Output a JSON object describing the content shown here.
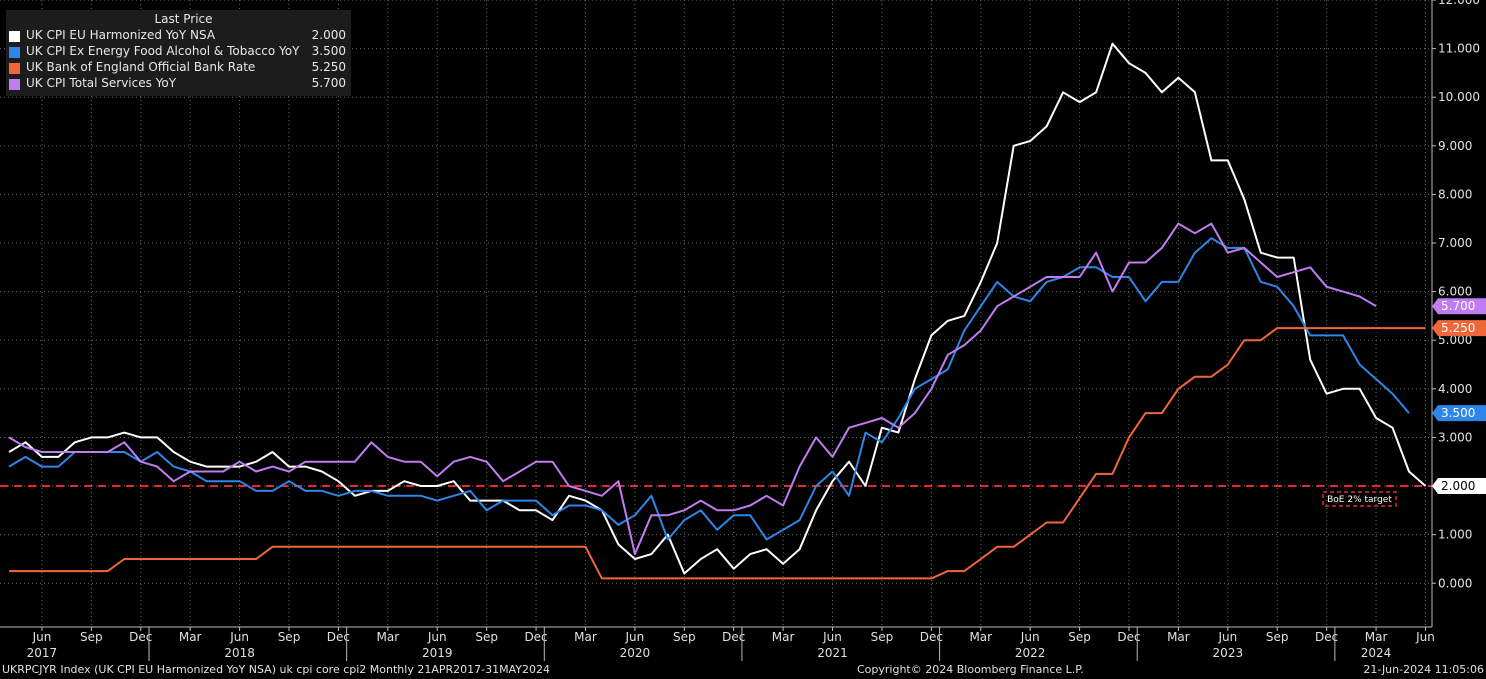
{
  "legend": {
    "title": "Last Price",
    "entries": [
      {
        "name": "UK CPI EU Harmonized YoY NSA",
        "value": "2.000",
        "color": "#ffffff"
      },
      {
        "name": "UK CPI Ex Energy Food Alcohol & Tobacco YoY",
        "value": "3.500",
        "color": "#2e86e8"
      },
      {
        "name": "UK Bank of England Official Bank Rate",
        "value": "5.250",
        "color": "#f2673a"
      },
      {
        "name": "UK CPI Total Services YoY",
        "value": "5.700",
        "color": "#c07df2"
      }
    ]
  },
  "footer": {
    "left": "UKRPCJYR Index (UK CPI EU Harmonized YoY NSA) uk cpi core cpi2  Monthly 21APR2017-31MAY2024",
    "center": "Copyright© 2024 Bloomberg Finance L.P.",
    "right": "21-Jun-2024 11:05:06"
  },
  "chart_data": {
    "type": "line",
    "x_start": "2017-04",
    "x_end": "2024-05",
    "ylim": [
      -0.9,
      12.0
    ],
    "y_ticks": [
      "0.000",
      "1.000",
      "2.000",
      "3.000",
      "4.000",
      "5.000",
      "6.000",
      "7.000",
      "8.000",
      "9.000",
      "10.000",
      "11.000",
      "12.000"
    ],
    "x_month_labels": [
      {
        "date": "2017-06",
        "label": "Jun"
      },
      {
        "date": "2017-09",
        "label": "Sep"
      },
      {
        "date": "2017-12",
        "label": "Dec"
      },
      {
        "date": "2018-03",
        "label": "Mar"
      },
      {
        "date": "2018-06",
        "label": "Jun"
      },
      {
        "date": "2018-09",
        "label": "Sep"
      },
      {
        "date": "2018-12",
        "label": "Dec"
      },
      {
        "date": "2019-03",
        "label": "Mar"
      },
      {
        "date": "2019-06",
        "label": "Jun"
      },
      {
        "date": "2019-09",
        "label": "Sep"
      },
      {
        "date": "2019-12",
        "label": "Dec"
      },
      {
        "date": "2020-03",
        "label": "Mar"
      },
      {
        "date": "2020-06",
        "label": "Jun"
      },
      {
        "date": "2020-09",
        "label": "Sep"
      },
      {
        "date": "2020-12",
        "label": "Dec"
      },
      {
        "date": "2021-03",
        "label": "Mar"
      },
      {
        "date": "2021-06",
        "label": "Jun"
      },
      {
        "date": "2021-09",
        "label": "Sep"
      },
      {
        "date": "2021-12",
        "label": "Dec"
      },
      {
        "date": "2022-03",
        "label": "Mar"
      },
      {
        "date": "2022-06",
        "label": "Jun"
      },
      {
        "date": "2022-09",
        "label": "Sep"
      },
      {
        "date": "2022-12",
        "label": "Dec"
      },
      {
        "date": "2023-03",
        "label": "Mar"
      },
      {
        "date": "2023-06",
        "label": "Jun"
      },
      {
        "date": "2023-09",
        "label": "Sep"
      },
      {
        "date": "2023-12",
        "label": "Dec"
      },
      {
        "date": "2024-03",
        "label": "Mar"
      },
      {
        "date": "2024-06",
        "label": "Jun"
      }
    ],
    "x_year_labels": [
      {
        "date": "2017-06",
        "label": "2017"
      },
      {
        "date": "2018-06",
        "label": "2018"
      },
      {
        "date": "2019-06",
        "label": "2019"
      },
      {
        "date": "2020-06",
        "label": "2020"
      },
      {
        "date": "2021-06",
        "label": "2021"
      },
      {
        "date": "2022-06",
        "label": "2022"
      },
      {
        "date": "2023-06",
        "label": "2023"
      },
      {
        "date": "2024-03",
        "label": "2024"
      }
    ],
    "reference_line": {
      "value": 2.0,
      "label": "BoE 2% target",
      "color": "#e8282d"
    },
    "series": [
      {
        "name": "UK CPI EU Harmonized YoY NSA",
        "color": "#ffffff",
        "last_label": "2.000",
        "values": [
          2.7,
          2.9,
          2.6,
          2.6,
          2.9,
          3.0,
          3.0,
          3.1,
          3.0,
          3.0,
          2.7,
          2.5,
          2.4,
          2.4,
          2.4,
          2.5,
          2.7,
          2.4,
          2.4,
          2.3,
          2.1,
          1.8,
          1.9,
          1.9,
          2.1,
          2.0,
          2.0,
          2.1,
          1.7,
          1.7,
          1.7,
          1.5,
          1.5,
          1.3,
          1.8,
          1.7,
          1.5,
          0.8,
          0.5,
          0.6,
          1.0,
          0.2,
          0.5,
          0.7,
          0.3,
          0.6,
          0.7,
          0.4,
          0.7,
          1.5,
          2.1,
          2.5,
          2.0,
          3.2,
          3.1,
          4.2,
          5.1,
          5.4,
          5.5,
          6.2,
          7.0,
          9.0,
          9.1,
          9.4,
          10.1,
          9.9,
          10.1,
          11.1,
          10.7,
          10.5,
          10.1,
          10.4,
          10.1,
          8.7,
          8.7,
          7.9,
          6.8,
          6.7,
          6.7,
          4.6,
          3.9,
          4.0,
          4.0,
          3.4,
          3.2,
          2.3,
          2.0
        ]
      },
      {
        "name": "UK CPI Ex Energy Food Alcohol & Tobacco YoY",
        "color": "#2e86e8",
        "last_label": "3.500",
        "values": [
          2.4,
          2.6,
          2.4,
          2.4,
          2.7,
          2.7,
          2.7,
          2.7,
          2.5,
          2.7,
          2.4,
          2.3,
          2.1,
          2.1,
          2.1,
          1.9,
          1.9,
          2.1,
          1.9,
          1.9,
          1.8,
          1.9,
          1.9,
          1.8,
          1.8,
          1.8,
          1.7,
          1.8,
          1.9,
          1.5,
          1.7,
          1.7,
          1.7,
          1.4,
          1.6,
          1.6,
          1.5,
          1.2,
          1.4,
          1.8,
          0.9,
          1.3,
          1.5,
          1.1,
          1.4,
          1.4,
          0.9,
          1.1,
          1.3,
          2.0,
          2.3,
          1.8,
          3.1,
          2.9,
          3.4,
          4.0,
          4.2,
          4.4,
          5.2,
          5.7,
          6.2,
          5.9,
          5.8,
          6.2,
          6.3,
          6.5,
          6.5,
          6.3,
          6.3,
          5.8,
          6.2,
          6.2,
          6.8,
          7.1,
          6.9,
          6.9,
          6.2,
          6.1,
          5.7,
          5.1,
          5.1,
          5.1,
          4.5,
          4.2,
          3.9,
          3.5
        ]
      },
      {
        "name": "UK Bank of England Official Bank Rate",
        "color": "#f2673a",
        "last_label": "5.250",
        "values": [
          0.25,
          0.25,
          0.25,
          0.25,
          0.25,
          0.25,
          0.25,
          0.5,
          0.5,
          0.5,
          0.5,
          0.5,
          0.5,
          0.5,
          0.5,
          0.5,
          0.75,
          0.75,
          0.75,
          0.75,
          0.75,
          0.75,
          0.75,
          0.75,
          0.75,
          0.75,
          0.75,
          0.75,
          0.75,
          0.75,
          0.75,
          0.75,
          0.75,
          0.75,
          0.75,
          0.75,
          0.1,
          0.1,
          0.1,
          0.1,
          0.1,
          0.1,
          0.1,
          0.1,
          0.1,
          0.1,
          0.1,
          0.1,
          0.1,
          0.1,
          0.1,
          0.1,
          0.1,
          0.1,
          0.1,
          0.1,
          0.1,
          0.25,
          0.25,
          0.5,
          0.75,
          0.75,
          1.0,
          1.25,
          1.25,
          1.75,
          2.25,
          2.25,
          3.0,
          3.5,
          3.5,
          4.0,
          4.25,
          4.25,
          4.5,
          5.0,
          5.0,
          5.25,
          5.25,
          5.25,
          5.25,
          5.25,
          5.25,
          5.25,
          5.25,
          5.25,
          5.25
        ]
      },
      {
        "name": "UK CPI Total Services YoY",
        "color": "#c07df2",
        "last_label": "5.700",
        "values": [
          3.0,
          2.8,
          2.7,
          2.7,
          2.7,
          2.7,
          2.7,
          2.9,
          2.5,
          2.4,
          2.1,
          2.3,
          2.3,
          2.3,
          2.5,
          2.3,
          2.4,
          2.3,
          2.5,
          2.5,
          2.5,
          2.5,
          2.9,
          2.6,
          2.5,
          2.5,
          2.2,
          2.5,
          2.6,
          2.5,
          2.1,
          2.3,
          2.5,
          2.5,
          2.0,
          1.9,
          1.8,
          2.1,
          0.6,
          1.4,
          1.4,
          1.5,
          1.7,
          1.5,
          1.5,
          1.6,
          1.8,
          1.6,
          2.4,
          3.0,
          2.6,
          3.2,
          3.3,
          3.4,
          3.2,
          3.5,
          4.0,
          4.7,
          4.9,
          5.2,
          5.7,
          5.9,
          6.1,
          6.3,
          6.3,
          6.3,
          6.8,
          6.0,
          6.6,
          6.6,
          6.9,
          7.4,
          7.2,
          7.4,
          6.8,
          6.9,
          6.6,
          6.3,
          6.4,
          6.5,
          6.1,
          6.0,
          5.9,
          5.7
        ]
      }
    ]
  }
}
